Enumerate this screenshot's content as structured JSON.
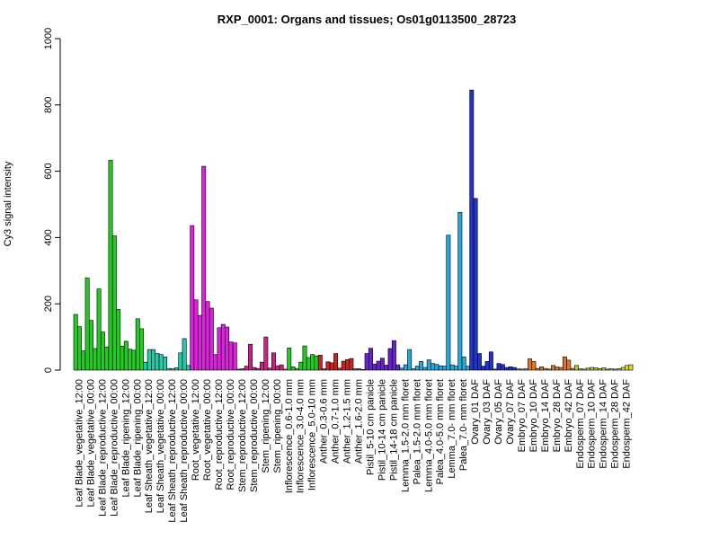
{
  "chart_data": {
    "type": "bar",
    "title": "RXP_0001: Organs and tissues; Os01g0113500_28723",
    "ylabel": "Cy3 signal intensity",
    "xlabel": "",
    "ylim": [
      0,
      1000
    ],
    "yticks": [
      0,
      200,
      400,
      600,
      800,
      1000
    ],
    "grid": false,
    "legend": "none",
    "groups": [
      {
        "labels": [
          "Leaf Blade_vegetative_12:00"
        ],
        "values": [
          168,
          131,
          58
        ],
        "color": "#22cc22"
      },
      {
        "labels": [
          "Leaf Blade_vegetative_00:00"
        ],
        "values": [
          278,
          150,
          65
        ],
        "color": "#22cc22"
      },
      {
        "labels": [
          "Leaf Blade_reproductive_12:00"
        ],
        "values": [
          245,
          115,
          70
        ],
        "color": "#22cc22"
      },
      {
        "labels": [
          "Leaf Blade_reproductive_00:00"
        ],
        "values": [
          633,
          405,
          183
        ],
        "color": "#22cc22"
      },
      {
        "labels": [
          "Leaf Blade_ripening_12:00"
        ],
        "values": [
          72,
          87,
          63
        ],
        "color": "#22cc22"
      },
      {
        "labels": [
          "Leaf Blade_ripening_00:00"
        ],
        "values": [
          60,
          155,
          125
        ],
        "color": "#22cc22"
      },
      {
        "labels": [
          "Leaf Sheath_vegetative_12:00"
        ],
        "values": [
          24,
          62,
          62
        ],
        "color": "#22ccaa"
      },
      {
        "labels": [
          "Leaf Sheath_vegetative_00:00"
        ],
        "values": [
          50,
          47,
          40
        ],
        "color": "#22ccaa"
      },
      {
        "labels": [
          "Leaf Sheath_reproductive_12:00"
        ],
        "values": [
          5,
          4,
          7
        ],
        "color": "#22ccaa"
      },
      {
        "labels": [
          "Leaf Sheath_reproductive_00:00"
        ],
        "values": [
          52,
          95,
          14
        ],
        "color": "#22ccaa"
      },
      {
        "labels": [
          "Root_vegetative_12:00"
        ],
        "values": [
          436,
          212,
          165
        ],
        "color": "#dd22dd"
      },
      {
        "labels": [
          "Root_vegetative_00:00"
        ],
        "values": [
          615,
          207,
          187
        ],
        "color": "#dd22dd"
      },
      {
        "labels": [
          "Root_reproductive_12:00"
        ],
        "values": [
          47,
          128,
          138
        ],
        "color": "#dd22dd"
      },
      {
        "labels": [
          "Root_reproductive_00:00"
        ],
        "values": [
          130,
          85,
          82
        ],
        "color": "#dd22dd"
      },
      {
        "labels": [
          "Stem_reproductive_12:00"
        ],
        "values": [
          3,
          4,
          12
        ],
        "color": "#cc2288"
      },
      {
        "labels": [
          "Stem_reproductive_00:00"
        ],
        "values": [
          78,
          8,
          5
        ],
        "color": "#cc2288"
      },
      {
        "labels": [
          "Stem_ripening_12:00"
        ],
        "values": [
          24,
          100,
          6
        ],
        "color": "#cc2288"
      },
      {
        "labels": [
          "Stem_ripening_00:00"
        ],
        "values": [
          52,
          13,
          16
        ],
        "color": "#cc2288"
      },
      {
        "labels": [
          "Inflorescence_0.6-1.0 mm"
        ],
        "values": [
          3,
          67,
          10
        ],
        "color": "#22cc22"
      },
      {
        "labels": [
          "Inflorescence_3.0-4.0 mm"
        ],
        "values": [
          5,
          24,
          73
        ],
        "color": "#22cc22"
      },
      {
        "labels": [
          "Inflorescence_5.0-10 mm"
        ],
        "values": [
          38,
          47,
          43
        ],
        "color": "#22cc22"
      },
      {
        "labels": [
          "Anther_0.3-0.6 mm"
        ],
        "values": [
          45,
          4,
          25
        ],
        "color": "#cc2222"
      },
      {
        "labels": [
          "Anther_0.7-1.0 mm"
        ],
        "values": [
          22,
          50,
          6
        ],
        "color": "#cc2222"
      },
      {
        "labels": [
          "Anther_1.2-1.5 mm"
        ],
        "values": [
          27,
          32,
          35
        ],
        "color": "#cc2222"
      },
      {
        "labels": [
          "Anther_1.6-2.0 mm"
        ],
        "values": [
          4,
          4,
          2
        ],
        "color": "#cc2222"
      },
      {
        "labels": [
          "Pistil_5-10 cm panicle"
        ],
        "values": [
          50,
          66,
          18
        ],
        "color": "#6622cc"
      },
      {
        "labels": [
          "Pistil_10-14 cm panicle"
        ],
        "values": [
          27,
          36,
          15
        ],
        "color": "#6622cc"
      },
      {
        "labels": [
          "Pistil_14-18 cm panicle"
        ],
        "values": [
          65,
          89,
          16
        ],
        "color": "#6622cc"
      },
      {
        "labels": [
          "Lemma_1.5-2.0 mm floret"
        ],
        "values": [
          6,
          16,
          62
        ],
        "color": "#22aadd"
      },
      {
        "labels": [
          "Palea_1.5-2.0 mm floret"
        ],
        "values": [
          4,
          12,
          26
        ],
        "color": "#22aadd"
      },
      {
        "labels": [
          "Lemma_4.0-5.0 mm floret"
        ],
        "values": [
          8,
          31,
          20
        ],
        "color": "#22aadd"
      },
      {
        "labels": [
          "Palea_4.0-5.0 mm floret"
        ],
        "values": [
          17,
          13,
          12
        ],
        "color": "#22aadd"
      },
      {
        "labels": [
          "Lemma_7.0- mm floret"
        ],
        "values": [
          407,
          16,
          12
        ],
        "color": "#22aadd"
      },
      {
        "labels": [
          "Palea_7.0- mm floret"
        ],
        "values": [
          476,
          40,
          12
        ],
        "color": "#22aadd"
      },
      {
        "labels": [
          "Ovary_01 DAF"
        ],
        "values": [
          845,
          518,
          50
        ],
        "color": "#2233cc"
      },
      {
        "labels": [
          "Ovary_03 DAF"
        ],
        "values": [
          12,
          26,
          55
        ],
        "color": "#2233cc"
      },
      {
        "labels": [
          "Ovary_05 DAF"
        ],
        "values": [
          3,
          20,
          17
        ],
        "color": "#2233cc"
      },
      {
        "labels": [
          "Ovary_07 DAF"
        ],
        "values": [
          8,
          10,
          8
        ],
        "color": "#2233cc"
      },
      {
        "labels": [
          "Embryo_07 DAF"
        ],
        "values": [
          4,
          3,
          4
        ],
        "color": "#dd7722"
      },
      {
        "labels": [
          "Embryo_10 DAF"
        ],
        "values": [
          34,
          26,
          5
        ],
        "color": "#dd7722"
      },
      {
        "labels": [
          "Embryo_14 DAF"
        ],
        "values": [
          10,
          5,
          3
        ],
        "color": "#dd7722"
      },
      {
        "labels": [
          "Embryo_28 DAF"
        ],
        "values": [
          14,
          9,
          8
        ],
        "color": "#dd7722"
      },
      {
        "labels": [
          "Embryo_42 DAF"
        ],
        "values": [
          40,
          30,
          5
        ],
        "color": "#dd7722"
      },
      {
        "labels": [
          "Endosperm_07 DAF"
        ],
        "values": [
          14,
          4,
          3
        ],
        "color": "#bbcc22"
      },
      {
        "labels": [
          "Endosperm_10 DAF"
        ],
        "values": [
          6,
          8,
          7
        ],
        "color": "#bbcc22"
      },
      {
        "labels": [
          "Endosperm_14 DAF"
        ],
        "values": [
          4,
          7,
          3
        ],
        "color": "#bbcc22"
      },
      {
        "labels": [
          "Endosperm_28 DAF"
        ],
        "values": [
          4,
          3,
          4
        ],
        "color": "#bbcc22"
      },
      {
        "labels": [
          "Endosperm_42 DAF"
        ],
        "values": [
          8,
          14,
          16
        ],
        "color": "#dddd22"
      }
    ]
  }
}
